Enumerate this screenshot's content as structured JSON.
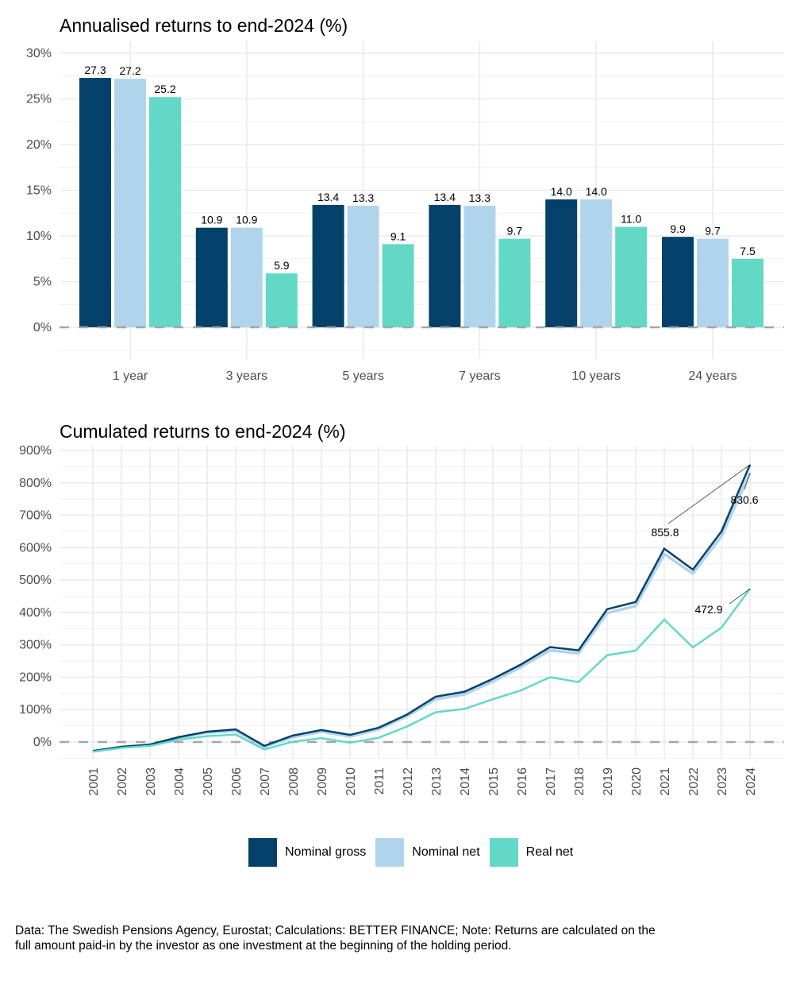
{
  "colors": {
    "nominal_gross": "#03416b",
    "nominal_net": "#b0d4ec",
    "real_net": "#62d9c7",
    "zero_line": "#a6a6a6",
    "grid": "#ebebeb"
  },
  "legend": {
    "items": [
      {
        "key": "nominal_gross",
        "label": "Nominal gross"
      },
      {
        "key": "nominal_net",
        "label": "Nominal net"
      },
      {
        "key": "real_net",
        "label": "Real net"
      }
    ]
  },
  "caption": "Data: The Swedish Pensions Agency, Eurostat; Calculations: BETTER FINANCE; Note: Returns are calculated on the full amount paid-in by the investor as one investment at the beginning of the holding period.",
  "chart_data": [
    {
      "type": "bar",
      "title": "Annualised returns to end-2024 (%)",
      "xlabel": "",
      "ylabel": "",
      "ylim": [
        -2.5,
        31
      ],
      "y_ticks": [
        0,
        5,
        10,
        15,
        20,
        25,
        30
      ],
      "y_tick_labels": [
        "0%",
        "5%",
        "10%",
        "15%",
        "20%",
        "25%",
        "30%"
      ],
      "grid": true,
      "zero_line": "dashed",
      "categories": [
        "1 year",
        "3 years",
        "5 years",
        "7 years",
        "10 years",
        "24 years"
      ],
      "series": [
        {
          "name": "Nominal gross",
          "key": "nominal_gross",
          "values": [
            27.3,
            10.9,
            13.4,
            13.4,
            14.0,
            9.9
          ],
          "labels": [
            "27.3",
            "10.9",
            "13.4",
            "13.4",
            "14.0",
            "9.9"
          ]
        },
        {
          "name": "Nominal net",
          "key": "nominal_net",
          "values": [
            27.2,
            10.9,
            13.3,
            13.3,
            14.0,
            9.7
          ],
          "labels": [
            "27.2",
            "10.9",
            "13.3",
            "13.3",
            "14.0",
            "9.7"
          ]
        },
        {
          "name": "Real net",
          "key": "real_net",
          "values": [
            25.2,
            5.9,
            9.1,
            9.7,
            11.0,
            7.5
          ],
          "labels": [
            "25.2",
            "5.9",
            "9.1",
            "9.7",
            "11.0",
            "7.5"
          ]
        }
      ]
    },
    {
      "type": "line",
      "title": "Cumulated returns to end-2024 (%)",
      "xlabel": "",
      "ylabel": "",
      "ylim": [
        -55,
        905
      ],
      "y_ticks": [
        0,
        100,
        200,
        300,
        400,
        500,
        600,
        700,
        800,
        900
      ],
      "y_tick_labels": [
        "0%",
        "100%",
        "200%",
        "300%",
        "400%",
        "500%",
        "600%",
        "700%",
        "800%",
        "900%"
      ],
      "grid": true,
      "zero_line": "dashed",
      "x": [
        "2001",
        "2002",
        "2003",
        "2004",
        "2005",
        "2006",
        "2007",
        "2008",
        "2009",
        "2010",
        "2011",
        "2012",
        "2013",
        "2014",
        "2015",
        "2016",
        "2017",
        "2018",
        "2019",
        "2020",
        "2021",
        "2022",
        "2023",
        "2024"
      ],
      "series": [
        {
          "name": "Nominal gross",
          "key": "nominal_gross",
          "values": [
            -28,
            -15,
            -8,
            15,
            32,
            39,
            -12,
            20,
            37,
            22,
            44,
            85,
            140,
            155,
            195,
            240,
            293,
            283,
            410,
            432,
            597,
            532,
            650,
            855.8
          ]
        },
        {
          "name": "Nominal net",
          "key": "nominal_net",
          "values": [
            -28,
            -15,
            -9,
            13,
            29,
            34,
            -15,
            15,
            32,
            17,
            39,
            80,
            132,
            147,
            187,
            232,
            283,
            274,
            398,
            420,
            580,
            520,
            635,
            830.6
          ]
        },
        {
          "name": "Real net",
          "key": "real_net",
          "values": [
            -30,
            -18,
            -12,
            7,
            18,
            23,
            -23,
            1,
            12,
            -2,
            13,
            48,
            92,
            102,
            132,
            160,
            200,
            185,
            268,
            282,
            378,
            292,
            353,
            472.9
          ]
        }
      ],
      "annotations": [
        {
          "series": "nominal_gross",
          "x": "2024",
          "value": 855.8,
          "label": "855.8"
        },
        {
          "series": "nominal_net",
          "x": "2024",
          "value": 830.6,
          "label": "830.6"
        },
        {
          "series": "real_net",
          "x": "2024",
          "value": 472.9,
          "label": "472.9"
        }
      ]
    }
  ]
}
